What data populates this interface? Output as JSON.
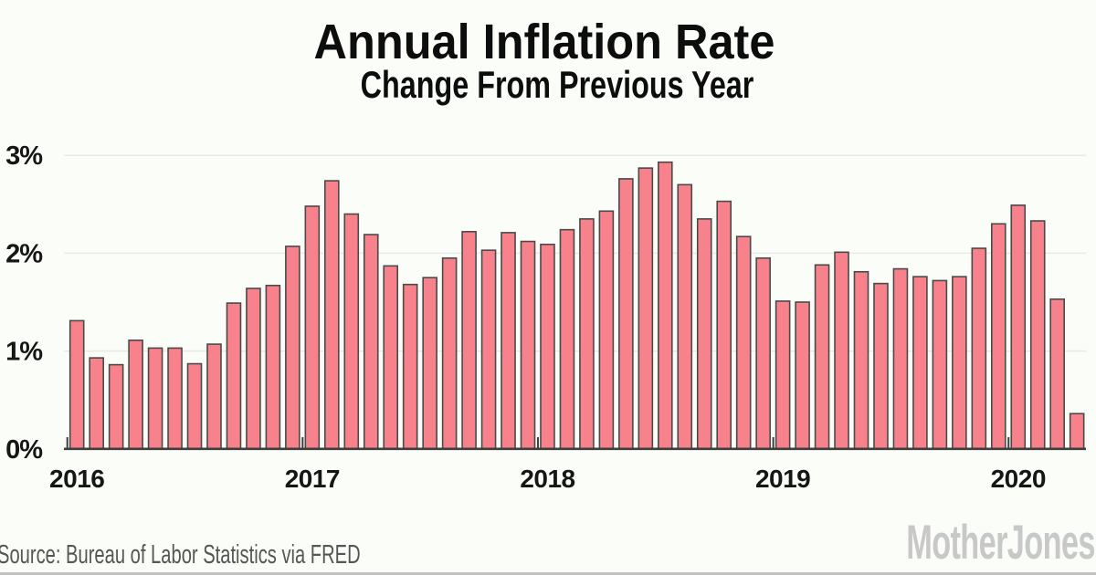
{
  "title": "Annual Inflation Rate",
  "subtitle": "Change From Previous Year",
  "source_note": "Source: Bureau of Labor Statistics via FRED",
  "brand_logo": "MotherJones",
  "colors": {
    "background": "#fbfdf8",
    "bar_fill": "#f8828c",
    "bar_border": "#4a4a4a",
    "grid": "#e9eae2",
    "axis": "#3e3e3e",
    "tick_text": "#161616",
    "title_text": "#0d0d0d",
    "source_text": "#565656",
    "brand": "#c8c8c8",
    "bottom_rule": "#c2c2c2"
  },
  "chart_data": {
    "type": "bar",
    "title": "Annual Inflation Rate",
    "subtitle": "Change From Previous Year",
    "x": [
      "2016-01",
      "2016-02",
      "2016-03",
      "2016-04",
      "2016-05",
      "2016-06",
      "2016-07",
      "2016-08",
      "2016-09",
      "2016-10",
      "2016-11",
      "2016-12",
      "2017-01",
      "2017-02",
      "2017-03",
      "2017-04",
      "2017-05",
      "2017-06",
      "2017-07",
      "2017-08",
      "2017-09",
      "2017-10",
      "2017-11",
      "2017-12",
      "2018-01",
      "2018-02",
      "2018-03",
      "2018-04",
      "2018-05",
      "2018-06",
      "2018-07",
      "2018-08",
      "2018-09",
      "2018-10",
      "2018-11",
      "2018-12",
      "2019-01",
      "2019-02",
      "2019-03",
      "2019-04",
      "2019-05",
      "2019-06",
      "2019-07",
      "2019-08",
      "2019-09",
      "2019-10",
      "2019-11",
      "2019-12",
      "2020-01",
      "2020-02",
      "2020-03",
      "2020-04"
    ],
    "values": [
      1.31,
      0.93,
      0.86,
      1.11,
      1.03,
      1.03,
      0.87,
      1.07,
      1.49,
      1.64,
      1.67,
      2.07,
      2.48,
      2.74,
      2.4,
      2.19,
      1.87,
      1.68,
      1.75,
      1.95,
      2.22,
      2.03,
      2.21,
      2.12,
      2.09,
      2.24,
      2.35,
      2.43,
      2.76,
      2.87,
      2.93,
      2.7,
      2.35,
      2.53,
      2.17,
      1.95,
      1.51,
      1.5,
      1.88,
      2.01,
      1.81,
      1.69,
      1.84,
      1.76,
      1.72,
      1.76,
      2.05,
      2.3,
      2.49,
      2.33,
      1.53,
      0.36
    ],
    "ylim": [
      0,
      3
    ],
    "yticks": [
      {
        "value": 0,
        "label": "0%"
      },
      {
        "value": 1,
        "label": "1%"
      },
      {
        "value": 2,
        "label": "2%"
      },
      {
        "value": 3,
        "label": "3%"
      }
    ],
    "xtick_years": [
      "2016",
      "2017",
      "2018",
      "2019",
      "2020"
    ],
    "grid": true,
    "legend": false
  }
}
